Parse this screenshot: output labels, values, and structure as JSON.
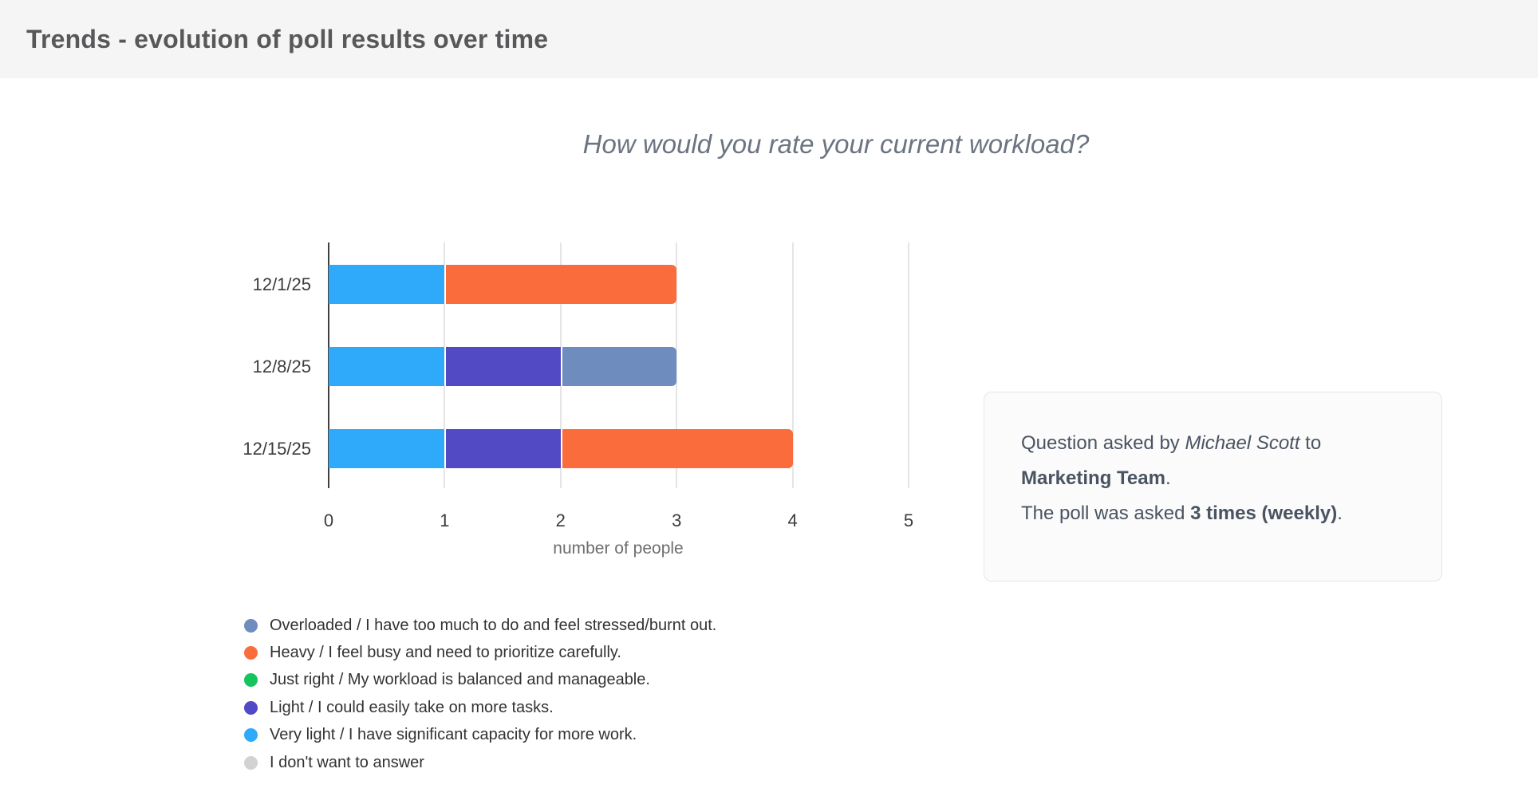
{
  "header": {
    "title": "Trends - evolution of poll results over time"
  },
  "chart_data": {
    "type": "bar",
    "variant": "horizontal-stacked",
    "title": "How would you rate your current workload?",
    "xlabel": "number of people",
    "xlim": [
      0,
      5
    ],
    "xticks": [
      0,
      1,
      2,
      3,
      4,
      5
    ],
    "grid": true,
    "legend_position": "bottom-left",
    "categories": [
      "12/1/25",
      "12/8/25",
      "12/15/25"
    ],
    "series": [
      {
        "name": "Overloaded / I have too much to do and feel stressed/burnt out.",
        "color": "#6E8CBD",
        "values": [
          0,
          1,
          0
        ]
      },
      {
        "name": "Heavy / I feel busy and need to prioritize carefully.",
        "color": "#FA6C3C",
        "values": [
          2,
          0,
          2
        ]
      },
      {
        "name": "Just right / My workload is balanced and manageable.",
        "color": "#16C45E",
        "values": [
          0,
          0,
          0
        ]
      },
      {
        "name": "Light / I could easily take on more tasks.",
        "color": "#5249C5",
        "values": [
          0,
          1,
          1
        ]
      },
      {
        "name": "Very light / I have significant capacity for more work.",
        "color": "#2FAAFA",
        "values": [
          1,
          1,
          1
        ]
      },
      {
        "name": "I don't want to answer",
        "color": "#D2D2D2",
        "values": [
          0,
          0,
          0
        ]
      }
    ],
    "stack_order": [
      5,
      4,
      3,
      2,
      1,
      0
    ],
    "totals_per_category": [
      3,
      3,
      4
    ]
  },
  "info_box": {
    "line1_prefix": "Question asked by ",
    "line1_italic": "Michael Scott",
    "line1_suffix": " to",
    "line2_bold": "Marketing Team",
    "line2_suffix": ".",
    "line3_prefix": "The poll was asked ",
    "line3_bold": "3 times (weekly)",
    "line3_suffix": "."
  },
  "colors": {
    "header_bg": "#F5F5F5",
    "header_text": "#58585A",
    "chart_title_text": "#6B7480",
    "axis_line": "#404040",
    "gridline": "#E5E5E5",
    "tick_text": "#3C3C3C",
    "axis_title_text": "#6E6E6E",
    "legend_text": "#323232",
    "info_text": "#4A5361",
    "info_bg": "#FBFBFB"
  }
}
